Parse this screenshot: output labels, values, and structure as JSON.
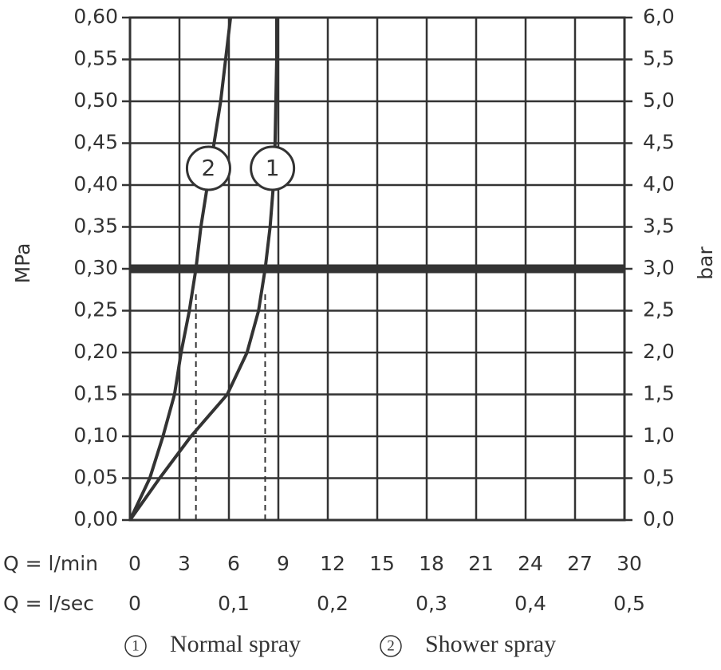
{
  "chart_data": {
    "type": "line",
    "y_label": "MPa",
    "y2_label": "bar",
    "x_label": "Q = l/min",
    "x2_label": "Q = l/sec",
    "xlim": [
      0,
      30
    ],
    "xticks": [
      0,
      3,
      6,
      9,
      12,
      15,
      18,
      21,
      24,
      27,
      30
    ],
    "x2lim": [
      0,
      0.5
    ],
    "x2ticks": [
      0,
      {
        "value": 0.1,
        "label": "0,1"
      },
      {
        "value": 0.2,
        "label": "0,2"
      },
      {
        "value": 0.3,
        "label": "0,3"
      },
      {
        "value": 0.4,
        "label": "0,4"
      },
      {
        "value": 0.5,
        "label": "0,5"
      }
    ],
    "ylim": [
      0,
      0.6
    ],
    "yticks": [
      {
        "value": 0,
        "label": "0,00"
      },
      {
        "value": 0.05,
        "label": "0,05"
      },
      {
        "value": 0.1,
        "label": "0,10"
      },
      {
        "value": 0.15,
        "label": "0,15"
      },
      {
        "value": 0.2,
        "label": "0,20"
      },
      {
        "value": 0.25,
        "label": "0,25"
      },
      {
        "value": 0.3,
        "label": "0,30"
      },
      {
        "value": 0.35,
        "label": "0,35"
      },
      {
        "value": 0.4,
        "label": "0,40"
      },
      {
        "value": 0.45,
        "label": "0,45"
      },
      {
        "value": 0.5,
        "label": "0,50"
      },
      {
        "value": 0.55,
        "label": "0,55"
      },
      {
        "value": 0.6,
        "label": "0,60"
      }
    ],
    "y2lim": [
      0,
      6
    ],
    "y2ticks": [
      {
        "value": 0,
        "label": "0,0"
      },
      {
        "value": 0.5,
        "label": "0,5"
      },
      {
        "value": 1,
        "label": "1,0"
      },
      {
        "value": 1.5,
        "label": "1,5"
      },
      {
        "value": 2,
        "label": "2,0"
      },
      {
        "value": 2.5,
        "label": "2,5"
      },
      {
        "value": 3,
        "label": "3,0"
      },
      {
        "value": 3.5,
        "label": "3,5"
      },
      {
        "value": 4,
        "label": "4,0"
      },
      {
        "value": 4.5,
        "label": "4,5"
      },
      {
        "value": 5,
        "label": "5,0"
      },
      {
        "value": 5.5,
        "label": "5,5"
      },
      {
        "value": 6,
        "label": "6,0"
      }
    ],
    "grid": true,
    "color": "#333333",
    "reference_y": 0.3,
    "drop_lines_x": [
      4.0,
      8.2
    ],
    "series": [
      {
        "name": "Normal spray",
        "marker": "1",
        "color": "#333333",
        "x": [
          0,
          1.8,
          3.7,
          5.9,
          7.1,
          7.8,
          8.2,
          8.5,
          8.7,
          8.8,
          8.85,
          8.9,
          8.9
        ],
        "values": [
          0,
          0.05,
          0.1,
          0.15,
          0.2,
          0.25,
          0.3,
          0.35,
          0.4,
          0.45,
          0.5,
          0.55,
          0.6
        ]
      },
      {
        "name": "Shower spray",
        "marker": "2",
        "color": "#333333",
        "x": [
          0,
          1.2,
          2.0,
          2.7,
          3.1,
          3.6,
          4.0,
          4.3,
          4.7,
          5.1,
          5.5,
          5.8,
          6.1
        ],
        "values": [
          0,
          0.05,
          0.1,
          0.15,
          0.2,
          0.25,
          0.3,
          0.35,
          0.4,
          0.45,
          0.5,
          0.55,
          0.6
        ]
      }
    ]
  }
}
